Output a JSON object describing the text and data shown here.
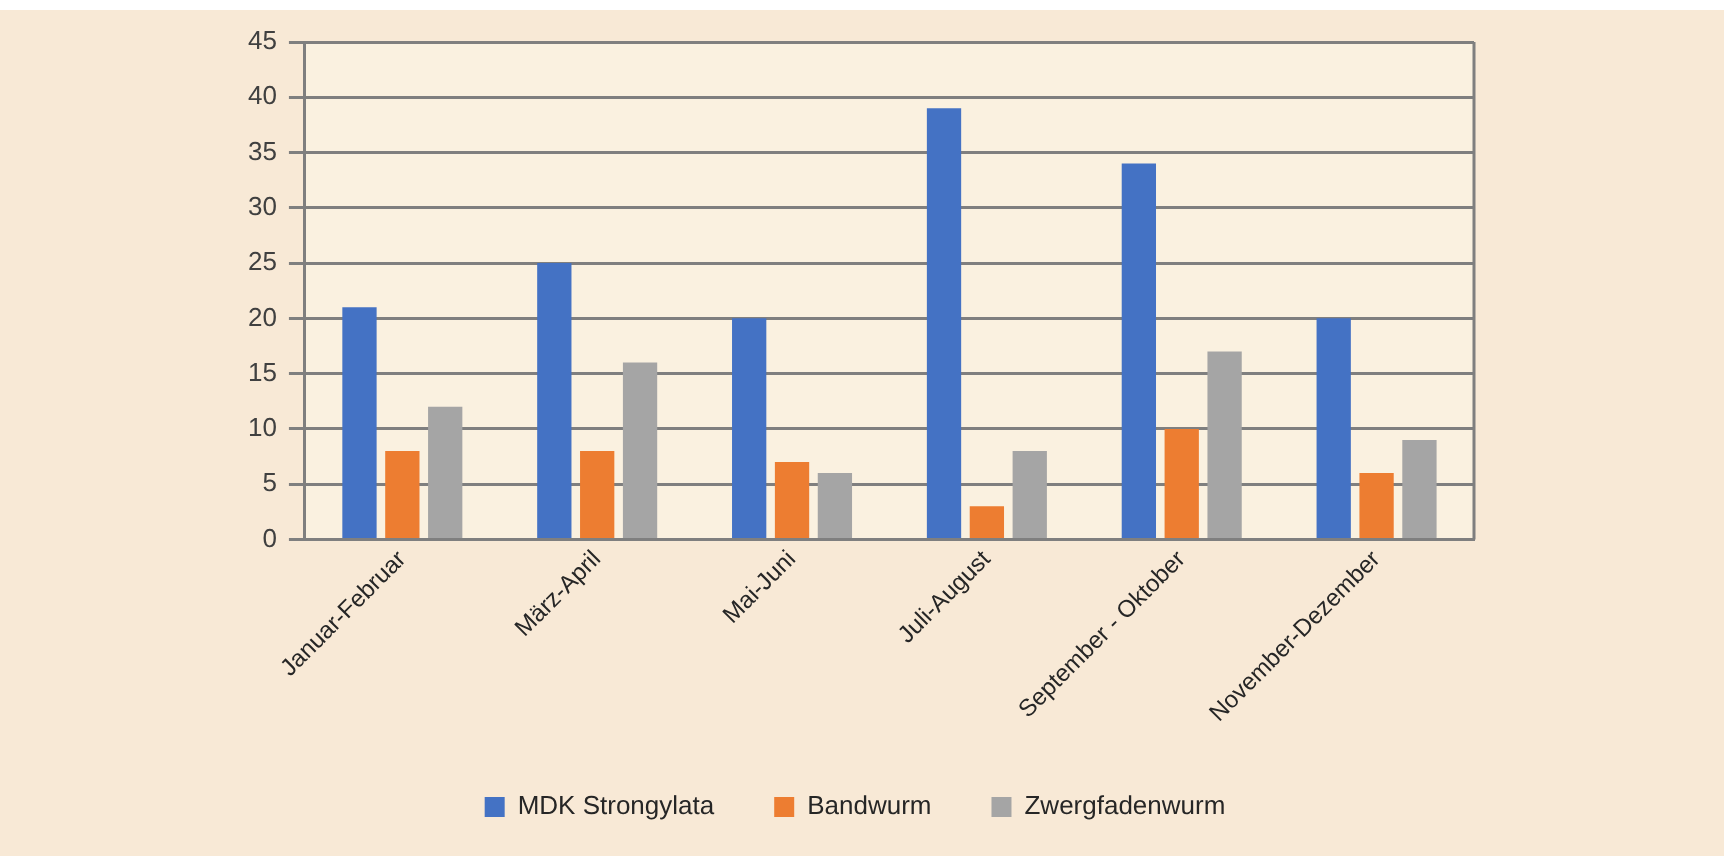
{
  "chart_data": {
    "type": "bar",
    "categories": [
      "Januar-Februar",
      "März-April",
      "Mai-Juni",
      "Juli-August",
      "September - Oktober",
      "November-Dezember"
    ],
    "series": [
      {
        "name": "MDK Strongylata",
        "color": "#4472c4",
        "values": [
          21,
          25,
          20,
          39,
          34,
          20
        ]
      },
      {
        "name": "Bandwurm",
        "color": "#ed7d31",
        "values": [
          8,
          8,
          7,
          3,
          10,
          6
        ]
      },
      {
        "name": "Zwergfadenwurm",
        "color": "#a5a5a5",
        "values": [
          12,
          16,
          6,
          8,
          17,
          9
        ]
      }
    ],
    "ylim": [
      0,
      45
    ],
    "yticks": [
      0,
      5,
      10,
      15,
      20,
      25,
      30,
      35,
      40,
      45
    ],
    "grid": "y",
    "legend": "bottom"
  }
}
